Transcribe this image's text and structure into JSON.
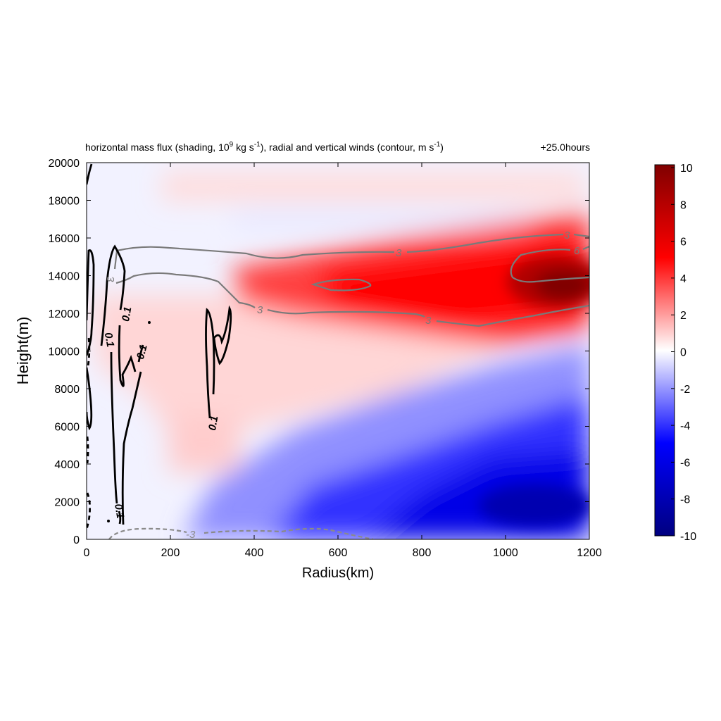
{
  "chart_data": {
    "type": "heatmap",
    "title_parts": {
      "a": "horizontal mass flux (shading, 10",
      "a_sup": "9",
      "b": " kg s",
      "b_sup": "-1",
      "c": "), radial and vertical winds (contour, m s",
      "c_sup": "-1",
      "d": ")"
    },
    "time_label": "+25.0hours",
    "xlabel": "Radius(km)",
    "ylabel": "Height(m)",
    "xlim": [
      0,
      1200
    ],
    "ylim": [
      0,
      20000
    ],
    "xticks": [
      "0",
      "200",
      "400",
      "600",
      "800",
      "1000",
      "1200"
    ],
    "yticks": [
      "0",
      "2000",
      "4000",
      "6000",
      "8000",
      "10000",
      "12000",
      "14000",
      "16000",
      "18000",
      "20000"
    ],
    "colorbar": {
      "range": [
        -10,
        10
      ],
      "ticks": [
        "10",
        "8",
        "6",
        "4",
        "2",
        "0",
        "-2",
        "-4",
        "-6",
        "-8",
        "-10"
      ],
      "colors": [
        "#000080",
        "#0000ff",
        "#ffffff",
        "#ff0000",
        "#800000"
      ]
    },
    "shading_features": [
      {
        "name": "upper outflow maximum",
        "r_km": 1080,
        "z_m": 13500,
        "value": 10
      },
      {
        "name": "upper outflow layer",
        "r_range_km": [
          400,
          1200
        ],
        "z_range_m": [
          11500,
          16000
        ],
        "value": 6
      },
      {
        "name": "low-level inflow",
        "r_range_km": [
          700,
          1200
        ],
        "z_range_m": [
          0,
          4000
        ],
        "value": -7
      },
      {
        "name": "mid-level inflow",
        "r_range_km": [
          600,
          1200
        ],
        "z_range_m": [
          4000,
          9000
        ],
        "value": -3
      }
    ],
    "contour_labels": {
      "radial_upper": [
        "3",
        "3",
        "3",
        "3",
        "6",
        "3",
        "3"
      ],
      "radial_lower": [
        "-3"
      ],
      "vertical": [
        "0.1",
        "0.1",
        "0.1",
        "0.1",
        "0.1"
      ]
    }
  }
}
